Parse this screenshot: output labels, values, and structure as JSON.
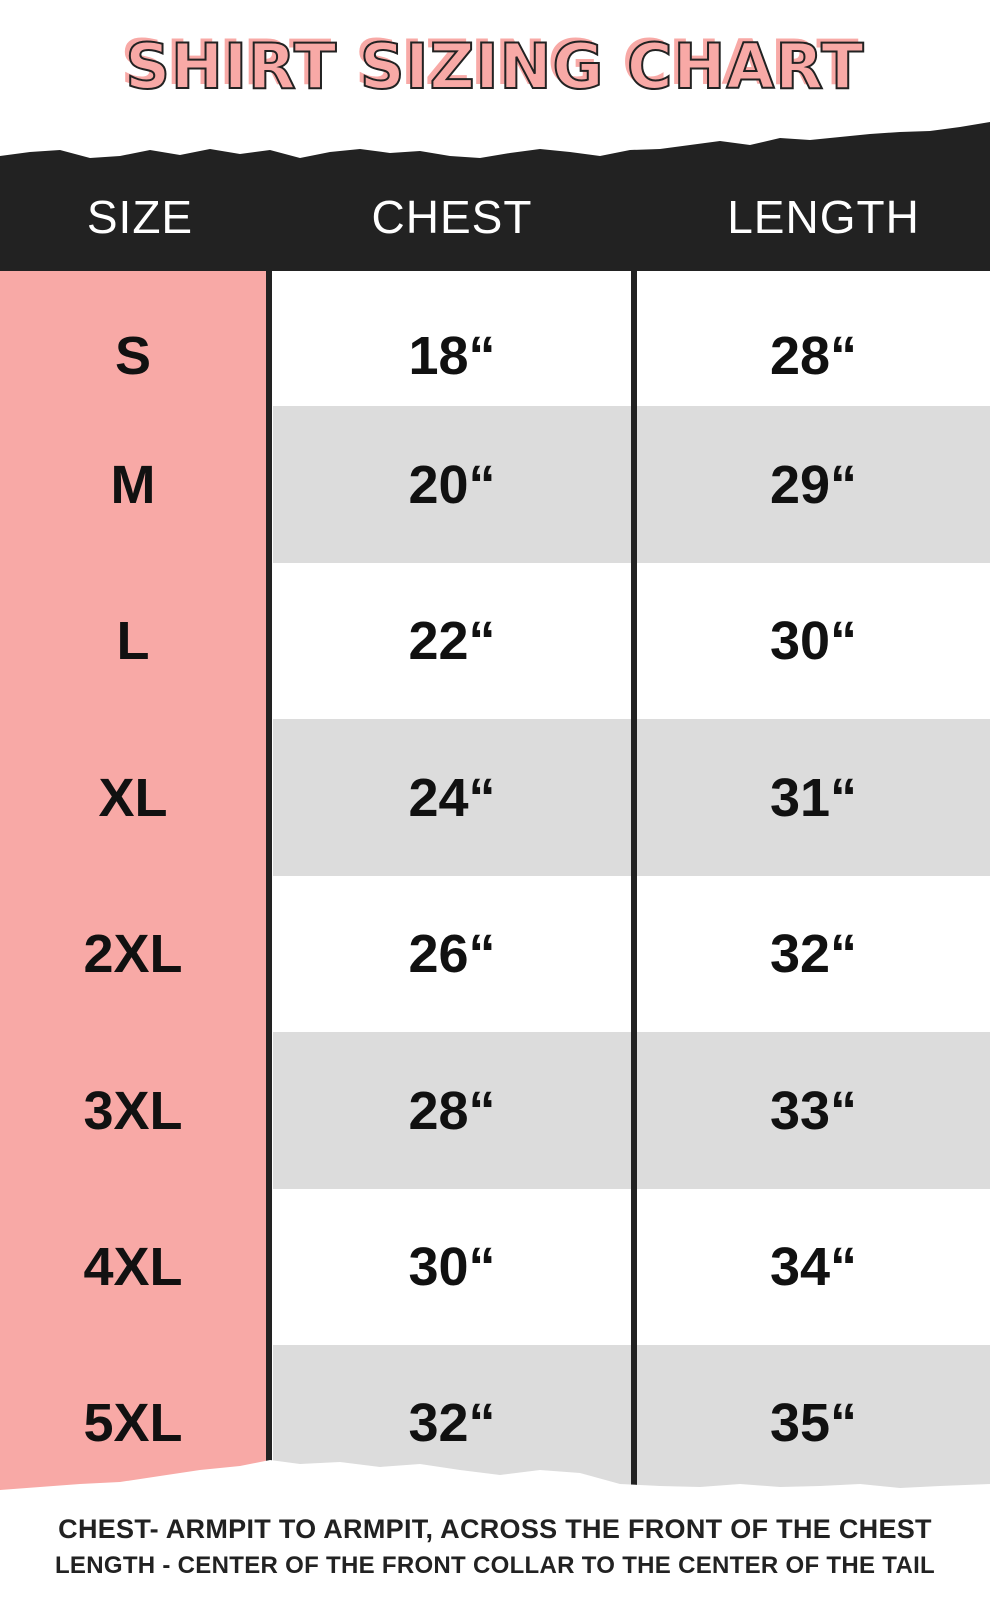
{
  "title": "SHIRT SIZING CHART",
  "headers": {
    "size": "SIZE",
    "chest": "CHEST",
    "length": "LENGTH"
  },
  "rows": [
    {
      "size": "S",
      "chest": "18“",
      "length": "28“"
    },
    {
      "size": "M",
      "chest": "20“",
      "length": "29“"
    },
    {
      "size": "L",
      "chest": "22“",
      "length": "30“"
    },
    {
      "size": "XL",
      "chest": "24“",
      "length": "31“"
    },
    {
      "size": "2XL",
      "chest": "26“",
      "length": "32“"
    },
    {
      "size": "3XL",
      "chest": "28“",
      "length": "33“"
    },
    {
      "size": "4XL",
      "chest": "30“",
      "length": "34“"
    },
    {
      "size": "5XL",
      "chest": "32“",
      "length": "35“"
    }
  ],
  "notes": [
    "CHEST- ARMPIT TO ARMPIT, ACROSS THE FRONT OF THE CHEST",
    "LENGTH - CENTER OF THE FRONT COLLAR TO THE CENTER OF THE TAIL"
  ],
  "colors": {
    "accent": "#f8a9a6",
    "dark": "#222222",
    "stripe": "#dcdcdc"
  }
}
